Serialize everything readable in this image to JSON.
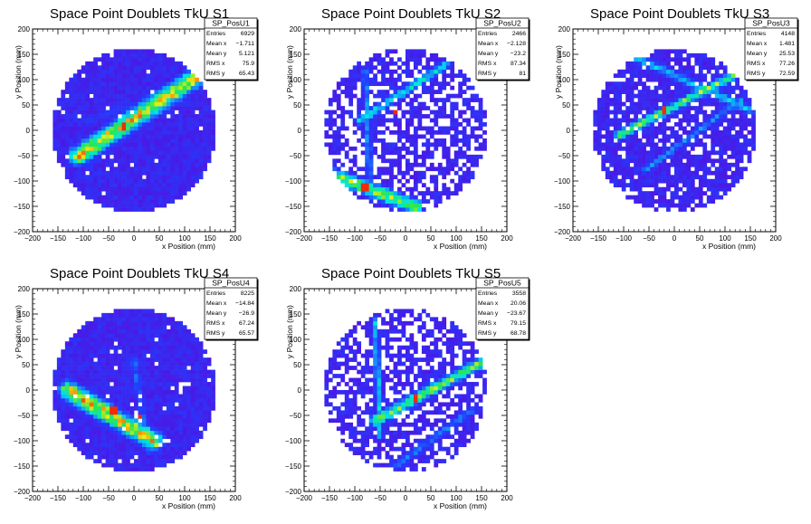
{
  "chart_data": [
    {
      "type": "heatmap",
      "title": "Space Point Doublets TkU S1",
      "xlabel": "x Position (mm)",
      "ylabel": "y Position (mm)",
      "xlim": [
        -200,
        200
      ],
      "ylim": [
        -200,
        200
      ],
      "xticks": [
        -200,
        -150,
        -100,
        -50,
        0,
        50,
        100,
        150,
        200
      ],
      "yticks": [
        -200,
        -150,
        -100,
        -50,
        0,
        50,
        100,
        150,
        200
      ],
      "stats": {
        "name": "SP_PosU1",
        "rows": [
          {
            "label": "Entries",
            "value": "6929"
          },
          {
            "label": "Mean x",
            "value": "−1.711"
          },
          {
            "label": "Mean y",
            "value": "5.121"
          },
          {
            "label": "RMS x",
            "value": "75.9"
          },
          {
            "label": "RMS y",
            "value": "65.43"
          }
        ]
      },
      "bin_size_mm": 8,
      "detector_radius_mm": 160,
      "density": "dense",
      "tracks": [
        {
          "from": [
            -110,
            -50
          ],
          "to": [
            130,
            110
          ],
          "strength": 1.0,
          "width": 16
        },
        {
          "from": [
            -90,
            20
          ],
          "to": [
            60,
            70
          ],
          "strength": 0.2,
          "width": 10
        }
      ],
      "hotspots": [
        [
          -20,
          5
        ]
      ]
    },
    {
      "type": "heatmap",
      "title": "Space Point Doublets TkU S2",
      "xlabel": "x Position (mm)",
      "ylabel": "y Position (mm)",
      "xlim": [
        -200,
        200
      ],
      "ylim": [
        -200,
        200
      ],
      "xticks": [
        -200,
        -150,
        -100,
        -50,
        0,
        50,
        100,
        150,
        200
      ],
      "yticks": [
        -200,
        -150,
        -100,
        -50,
        0,
        50,
        100,
        150,
        200
      ],
      "stats": {
        "name": "SP_PosU2",
        "rows": [
          {
            "label": "Entries",
            "value": "2466"
          },
          {
            "label": "Mean x",
            "value": "−2.128"
          },
          {
            "label": "Mean y",
            "value": "−23.2"
          },
          {
            "label": "RMS x",
            "value": "87.34"
          },
          {
            "label": "RMS y",
            "value": "81"
          }
        ]
      },
      "bin_size_mm": 8,
      "detector_radius_mm": 160,
      "density": "sparse",
      "tracks": [
        {
          "from": [
            -140,
            -90
          ],
          "to": [
            20,
            -150
          ],
          "strength": 0.9,
          "width": 12
        },
        {
          "from": [
            -90,
            20
          ],
          "to": [
            80,
            130
          ],
          "strength": 0.6,
          "width": 8
        },
        {
          "from": [
            -70,
            -100
          ],
          "to": [
            -80,
            120
          ],
          "strength": 0.4,
          "width": 6
        }
      ],
      "hotspots": [
        [
          -80,
          -112
        ],
        [
          -20,
          40
        ]
      ]
    },
    {
      "type": "heatmap",
      "title": "Space Point Doublets TkU S3",
      "xlabel": "x Position (mm)",
      "ylabel": "y Position (mm)",
      "xlim": [
        -200,
        200
      ],
      "ylim": [
        -200,
        200
      ],
      "xticks": [
        -200,
        -150,
        -100,
        -50,
        0,
        50,
        100,
        150,
        200
      ],
      "yticks": [
        -200,
        -150,
        -100,
        -50,
        0,
        50,
        100,
        150,
        200
      ],
      "stats": {
        "name": "SP_PosU3",
        "rows": [
          {
            "label": "Entries",
            "value": "4148"
          },
          {
            "label": "Mean x",
            "value": "1.481"
          },
          {
            "label": "Mean y",
            "value": "25.53"
          },
          {
            "label": "RMS x",
            "value": "77.26"
          },
          {
            "label": "RMS y",
            "value": "72.59"
          }
        ]
      },
      "bin_size_mm": 8,
      "detector_radius_mm": 160,
      "density": "medium",
      "tracks": [
        {
          "from": [
            -110,
            -10
          ],
          "to": [
            120,
            110
          ],
          "strength": 0.8,
          "width": 8
        },
        {
          "from": [
            -90,
            150
          ],
          "to": [
            150,
            40
          ],
          "strength": 0.5,
          "width": 8
        },
        {
          "from": [
            -60,
            -80
          ],
          "to": [
            130,
            60
          ],
          "strength": 0.4,
          "width": 6
        }
      ],
      "hotspots": [
        [
          -20,
          40
        ],
        [
          -150,
          -70
        ]
      ]
    },
    {
      "type": "heatmap",
      "title": "Space Point Doublets TkU S4",
      "xlabel": "x Position (mm)",
      "ylabel": "y Position (mm)",
      "xlim": [
        -200,
        200
      ],
      "ylim": [
        -200,
        200
      ],
      "xticks": [
        -200,
        -150,
        -100,
        -50,
        0,
        50,
        100,
        150,
        200
      ],
      "yticks": [
        -200,
        -150,
        -100,
        -50,
        0,
        50,
        100,
        150,
        200
      ],
      "stats": {
        "name": "SP_PosU4",
        "rows": [
          {
            "label": "Entries",
            "value": "8225"
          },
          {
            "label": "Mean x",
            "value": "−14.84"
          },
          {
            "label": "Mean y",
            "value": "−26.9"
          },
          {
            "label": "RMS x",
            "value": "67.24"
          },
          {
            "label": "RMS y",
            "value": "65.57"
          }
        ]
      },
      "bin_size_mm": 8,
      "detector_radius_mm": 160,
      "density": "dense",
      "tracks": [
        {
          "from": [
            -130,
            0
          ],
          "to": [
            40,
            -100
          ],
          "strength": 1.0,
          "width": 16
        },
        {
          "from": [
            0,
            60
          ],
          "to": [
            30,
            -120
          ],
          "strength": 0.3,
          "width": 8
        }
      ],
      "hotspots": [
        [
          -40,
          -40
        ],
        [
          10,
          -55
        ]
      ]
    },
    {
      "type": "heatmap",
      "title": "Space Point Doublets TkU S5",
      "xlabel": "x Position (mm)",
      "ylabel": "y Position (mm)",
      "xlim": [
        -200,
        200
      ],
      "ylim": [
        -200,
        200
      ],
      "xticks": [
        -200,
        -150,
        -100,
        -50,
        0,
        50,
        100,
        150,
        200
      ],
      "yticks": [
        -200,
        -150,
        -100,
        -50,
        0,
        50,
        100,
        150,
        200
      ],
      "stats": {
        "name": "SP_PosU5",
        "rows": [
          {
            "label": "Entries",
            "value": "3558"
          },
          {
            "label": "Mean x",
            "value": "20.06"
          },
          {
            "label": "Mean y",
            "value": "−23.67"
          },
          {
            "label": "RMS x",
            "value": "79.15"
          },
          {
            "label": "RMS y",
            "value": "68.78"
          }
        ]
      },
      "bin_size_mm": 8,
      "detector_radius_mm": 160,
      "density": "sparse",
      "tracks": [
        {
          "from": [
            -60,
            -60
          ],
          "to": [
            160,
            60
          ],
          "strength": 0.8,
          "width": 10
        },
        {
          "from": [
            -60,
            140
          ],
          "to": [
            -50,
            -90
          ],
          "strength": 0.5,
          "width": 6
        },
        {
          "from": [
            -20,
            -150
          ],
          "to": [
            130,
            -40
          ],
          "strength": 0.35,
          "width": 8
        }
      ],
      "hotspots": [
        [
          20,
          -18
        ]
      ]
    }
  ]
}
